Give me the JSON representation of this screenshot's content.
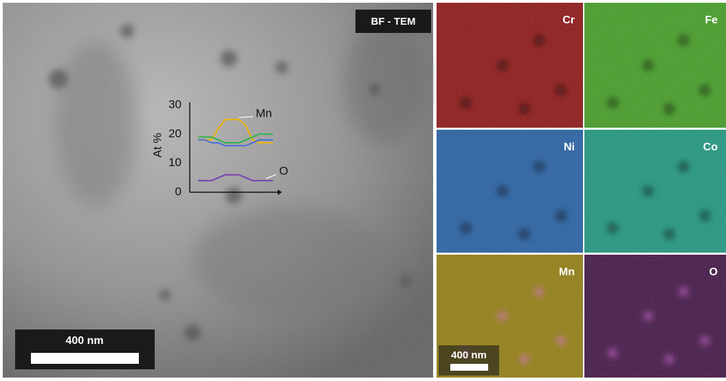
{
  "bf_label": "BF - TEM",
  "bf_scale_bar": "400 nm",
  "maps": [
    {
      "label": "Cr",
      "color": "#8a0c0c"
    },
    {
      "label": "Fe",
      "color": "#3c9a1c"
    },
    {
      "label": "Ni",
      "color": "#1d5aa0"
    },
    {
      "label": "Co",
      "color": "#16937a"
    },
    {
      "label": "Mn",
      "color": "#8f7a08"
    },
    {
      "label": "O",
      "color": "#3a0c3e"
    }
  ],
  "map_scale_bar": "400 nm",
  "chart_data": {
    "type": "line",
    "ylabel": "At %",
    "categories": [
      null,
      null,
      null,
      null,
      null,
      null,
      null,
      null,
      null,
      null,
      null,
      null
    ],
    "ylim": [
      0,
      30
    ],
    "yticks": [
      0,
      10,
      20,
      30
    ],
    "series": [
      {
        "name": "Mn",
        "color": "#f0b400",
        "values": [
          18,
          18,
          18,
          22,
          25,
          25,
          25,
          23,
          18,
          17,
          17,
          17
        ]
      },
      {
        "color": "#2fb34a",
        "values": [
          19,
          19,
          19,
          18,
          17,
          17,
          17,
          18,
          19,
          20,
          20,
          20
        ]
      },
      {
        "color": "#4a6fd6",
        "values": [
          18,
          18,
          17,
          17,
          16,
          16,
          16,
          16,
          17,
          18,
          18,
          18
        ]
      },
      {
        "name": "O",
        "color": "#7a3fb0",
        "values": [
          4,
          4,
          4,
          5,
          6,
          6,
          6,
          5,
          4,
          4,
          4,
          4
        ]
      }
    ]
  }
}
